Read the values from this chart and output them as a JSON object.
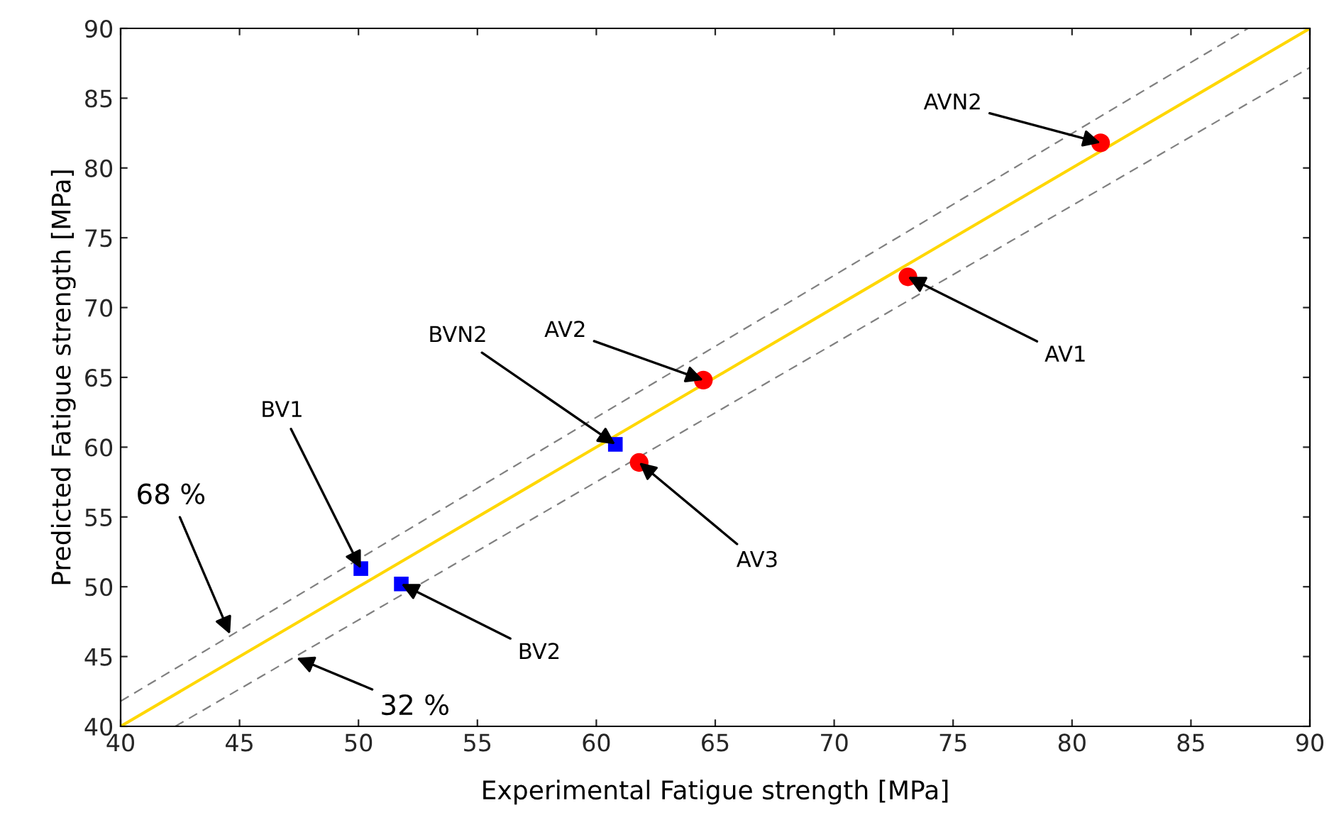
{
  "chart_data": {
    "type": "scatter",
    "xlabel": "Experimental Fatigue strength [MPa]",
    "ylabel": "Predicted Fatigue strength [MPa]",
    "xlim": [
      40,
      90
    ],
    "ylim": [
      40,
      90
    ],
    "xticks": [
      40,
      45,
      50,
      55,
      60,
      65,
      70,
      75,
      80,
      85,
      90
    ],
    "yticks": [
      40,
      45,
      50,
      55,
      60,
      65,
      70,
      75,
      80,
      85,
      90
    ],
    "grid": false,
    "legend": false,
    "series": [
      {
        "type": "line",
        "color": "#ffd700",
        "line_style": "solid",
        "marker": "none",
        "x": [
          40,
          90
        ],
        "values": [
          40,
          90
        ]
      },
      {
        "type": "line",
        "color": "#808080",
        "line_style": "dashed",
        "marker": "none",
        "x": [
          40,
          87.4
        ],
        "values": [
          41.8,
          90
        ]
      },
      {
        "type": "line",
        "color": "#808080",
        "line_style": "dashed",
        "marker": "none",
        "x": [
          42.3,
          90
        ],
        "values": [
          40,
          87.2
        ]
      },
      {
        "color": "#ff0000",
        "marker": "circle",
        "x": [
          81.2,
          73.1,
          64.5,
          61.8
        ],
        "values": [
          81.8,
          72.2,
          64.8,
          58.9
        ]
      },
      {
        "color": "#0000ff",
        "marker": "square",
        "x": [
          50.1,
          51.8,
          60.8
        ],
        "values": [
          51.3,
          50.2,
          60.2
        ]
      }
    ],
    "annotations": [
      {
        "text": "AVN2",
        "x": 81.2,
        "y": 81.8
      },
      {
        "text": "AV1",
        "x": 73.1,
        "y": 72.2
      },
      {
        "text": "AV2",
        "x": 64.5,
        "y": 64.8
      },
      {
        "text": "AV3",
        "x": 61.8,
        "y": 58.9
      },
      {
        "text": "BVN2",
        "x": 60.8,
        "y": 60.2
      },
      {
        "text": "BV1",
        "x": 50.1,
        "y": 51.3
      },
      {
        "text": "BV2",
        "x": 51.8,
        "y": 50.2
      },
      {
        "text": "68 %",
        "x": 44.6,
        "y": 46.6
      },
      {
        "text": "32 %",
        "x": 47.4,
        "y": 44.9
      }
    ]
  }
}
